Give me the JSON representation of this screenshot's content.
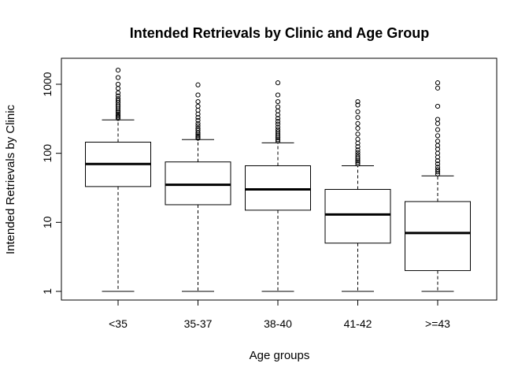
{
  "chart_data": {
    "type": "boxplot",
    "title": "Intended Retrievals by Clinic and Age Group",
    "xlabel": "Age groups",
    "ylabel": "Intended Retrievals by Clinic",
    "yscale": "log",
    "ylim": [
      0.8,
      2000
    ],
    "yticks": [
      1,
      10,
      100,
      1000
    ],
    "ytick_labels": [
      "1",
      "10",
      "100",
      "1000"
    ],
    "categories": [
      "<35",
      "35-37",
      "38-40",
      "41-42",
      ">=43"
    ],
    "boxes": [
      {
        "min": 1,
        "q1": 33,
        "median": 70,
        "q3": 145,
        "max": 305,
        "outliers": [
          320,
          335,
          350,
          370,
          390,
          410,
          440,
          470,
          500,
          540,
          580,
          620,
          680,
          750,
          870,
          1000,
          1250,
          1600
        ]
      },
      {
        "min": 1,
        "q1": 18,
        "median": 35,
        "q3": 75,
        "max": 158,
        "outliers": [
          165,
          172,
          180,
          190,
          200,
          215,
          230,
          250,
          270,
          300,
          330,
          370,
          420,
          480,
          560,
          700,
          980
        ]
      },
      {
        "min": 1,
        "q1": 15,
        "median": 30,
        "q3": 66,
        "max": 142,
        "outliers": [
          150,
          158,
          168,
          178,
          190,
          205,
          220,
          240,
          265,
          290,
          320,
          360,
          410,
          470,
          560,
          700,
          1050
        ]
      },
      {
        "min": 1,
        "q1": 5,
        "median": 13,
        "q3": 30,
        "max": 66,
        "outliers": [
          70,
          74,
          78,
          83,
          88,
          95,
          103,
          112,
          125,
          140,
          160,
          190,
          230,
          270,
          330,
          400,
          500,
          560
        ]
      },
      {
        "min": 1,
        "q1": 2,
        "median": 7,
        "q3": 20,
        "max": 47,
        "outliers": [
          50,
          54,
          58,
          63,
          70,
          78,
          88,
          100,
          115,
          130,
          150,
          180,
          220,
          270,
          310,
          480,
          880,
          1050
        ]
      }
    ],
    "grid": false,
    "colors": {
      "box_fill": "#ffffff",
      "stroke": "#000000"
    }
  }
}
